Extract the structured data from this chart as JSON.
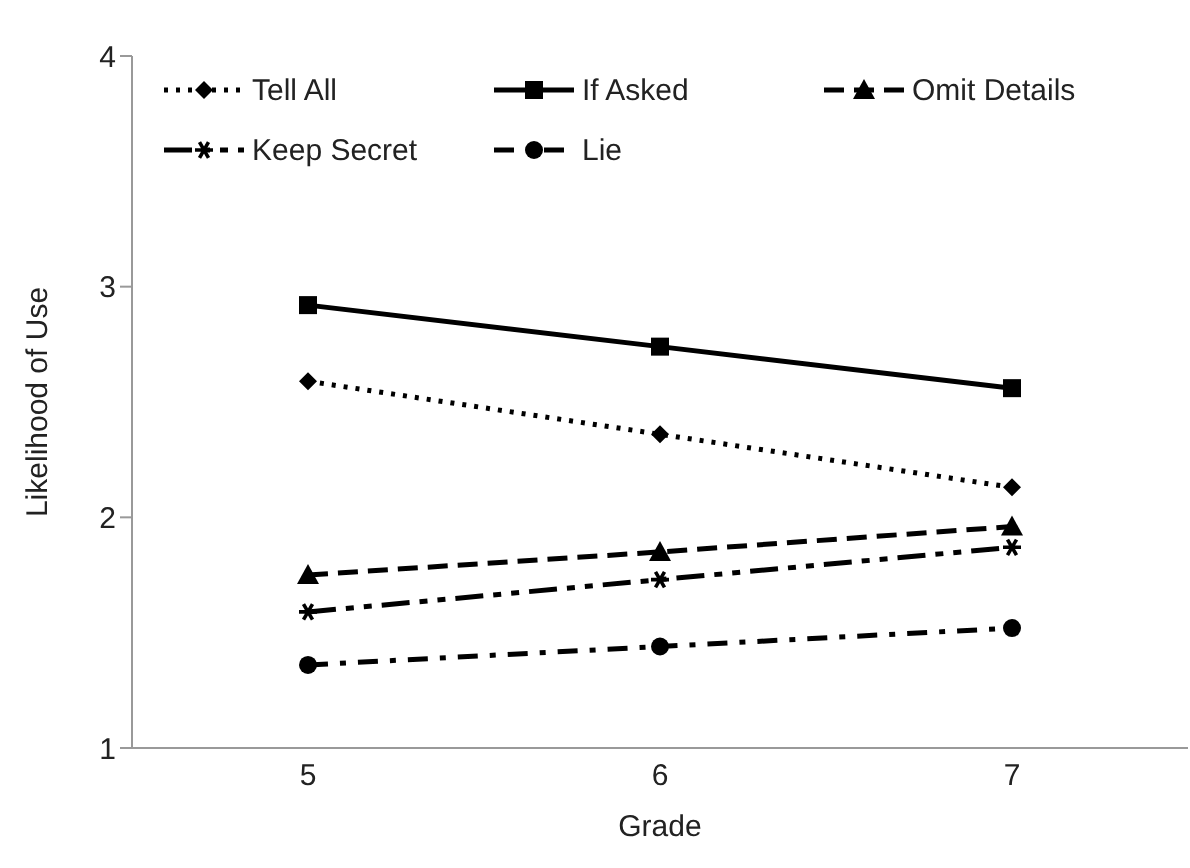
{
  "chart_data": {
    "type": "line",
    "xlabel": "Grade",
    "ylabel": "Likelihood  of Use",
    "categories": [
      "5",
      "6",
      "7"
    ],
    "ylim": [
      1,
      4
    ],
    "yticks": [
      1,
      2,
      3,
      4
    ],
    "grid": false,
    "legend": "top",
    "series": [
      {
        "name": "Tell All",
        "color": "#000000",
        "values": [
          2.59,
          2.36,
          2.13
        ],
        "marker": "diamond",
        "line_style": "dotted"
      },
      {
        "name": "If Asked",
        "color": "#000000",
        "values": [
          2.92,
          2.74,
          2.56
        ],
        "marker": "square",
        "line_style": "solid"
      },
      {
        "name": "Omit Details",
        "color": "#000000",
        "values": [
          1.75,
          1.85,
          1.96
        ],
        "marker": "triangle",
        "line_style": "dashed"
      },
      {
        "name": "Keep Secret",
        "color": "#000000",
        "values": [
          1.59,
          1.73,
          1.87
        ],
        "marker": "cross",
        "line_style": "dashdotdot"
      },
      {
        "name": "Lie",
        "color": "#000000",
        "values": [
          1.36,
          1.44,
          1.52
        ],
        "marker": "circle",
        "line_style": "dashdot"
      }
    ]
  }
}
